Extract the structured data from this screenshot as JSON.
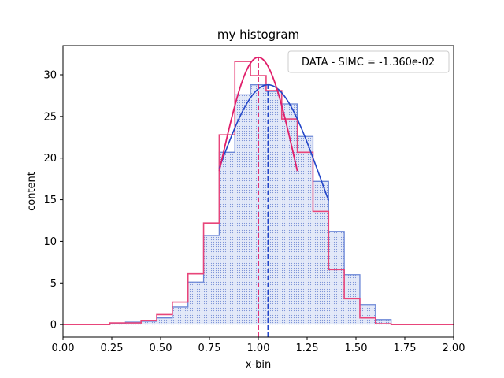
{
  "chart_data": {
    "type": "histogram",
    "title": "my histogram",
    "xlabel": "x-bin",
    "ylabel": "content",
    "xlim": [
      0.0,
      2.0
    ],
    "ylim": [
      -1.5,
      33.5
    ],
    "xticks": [
      "0.00",
      "0.25",
      "0.50",
      "0.75",
      "1.00",
      "1.25",
      "1.50",
      "1.75",
      "2.00"
    ],
    "yticks": [
      "0",
      "5",
      "10",
      "15",
      "20",
      "25",
      "30"
    ],
    "grid": false,
    "legend": {
      "position": "top-right",
      "text": "DATA - SIMC = -1.360e-02"
    },
    "bin_edges": [
      0.0,
      0.08,
      0.16,
      0.24,
      0.32,
      0.4,
      0.48,
      0.56,
      0.64,
      0.72,
      0.8,
      0.88,
      0.96,
      1.04,
      1.12,
      1.2,
      1.28,
      1.36,
      1.44,
      1.52,
      1.6,
      1.68,
      1.76,
      1.84,
      1.92,
      2.0
    ],
    "series": [
      {
        "name": "SIMC",
        "style": "filled-hatched",
        "color": "#6b86d6",
        "fill": "#dfe6f7",
        "values": [
          0,
          0,
          0,
          0.1,
          0.3,
          0.4,
          0.8,
          2.1,
          5.1,
          10.7,
          20.7,
          27.6,
          28.8,
          28.0,
          26.5,
          22.6,
          17.2,
          11.2,
          6.0,
          2.4,
          0.6,
          0,
          0,
          0,
          0
        ]
      },
      {
        "name": "DATA",
        "style": "step",
        "color": "#e8457a",
        "values": [
          0,
          0,
          0,
          0.2,
          0.2,
          0.5,
          1.2,
          2.7,
          6.1,
          12.2,
          22.8,
          31.6,
          29.9,
          28.1,
          24.7,
          20.7,
          13.6,
          6.6,
          3.1,
          0.8,
          0.1,
          0,
          0,
          0,
          0
        ]
      }
    ],
    "fits": [
      {
        "name": "SIMC fit",
        "color": "#2245c8",
        "mean": 1.05,
        "sigma": 0.27,
        "amplitude": 28.8,
        "x_range": [
          0.8,
          1.36
        ]
      },
      {
        "name": "DATA fit",
        "color": "#e01e6a",
        "mean": 1.0,
        "sigma": 0.19,
        "amplitude": 32.1,
        "x_range": [
          0.8,
          1.2
        ]
      }
    ],
    "vlines": [
      {
        "x": 1.0,
        "color": "#e01e6a",
        "style": "dashed"
      },
      {
        "x": 1.05,
        "color": "#2245c8",
        "style": "dashed"
      }
    ]
  }
}
